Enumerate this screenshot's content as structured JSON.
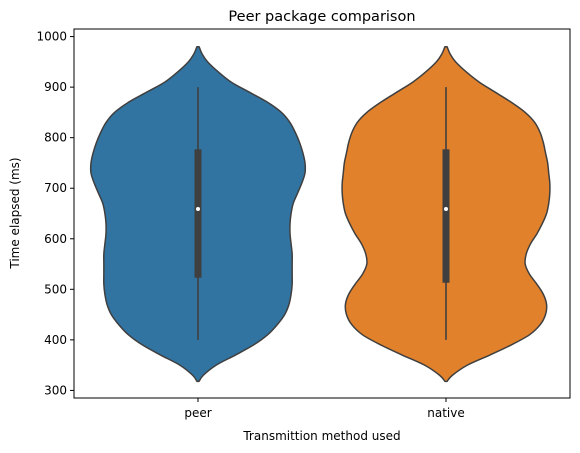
{
  "chart_data": {
    "type": "violin",
    "title": "Peer package comparison",
    "xlabel": "Transmittion method used",
    "ylabel": "Time elapsed (ms)",
    "ylim": [
      285,
      1015
    ],
    "yticks": [
      300,
      400,
      500,
      600,
      700,
      800,
      900,
      1000
    ],
    "categories": [
      "peer",
      "native"
    ],
    "grid": false,
    "series": [
      {
        "category": "peer",
        "color": "#3274a1",
        "min": 400,
        "q1": 523,
        "median": 659,
        "q3": 777,
        "max": 900,
        "density": [
          [
            318,
            0.01
          ],
          [
            330,
            0.05
          ],
          [
            350,
            0.17
          ],
          [
            370,
            0.35
          ],
          [
            390,
            0.52
          ],
          [
            410,
            0.65
          ],
          [
            430,
            0.74
          ],
          [
            450,
            0.81
          ],
          [
            470,
            0.85
          ],
          [
            490,
            0.87
          ],
          [
            510,
            0.88
          ],
          [
            530,
            0.88
          ],
          [
            550,
            0.88
          ],
          [
            570,
            0.88
          ],
          [
            590,
            0.87
          ],
          [
            610,
            0.86
          ],
          [
            630,
            0.86
          ],
          [
            650,
            0.87
          ],
          [
            670,
            0.89
          ],
          [
            690,
            0.93
          ],
          [
            710,
            0.97
          ],
          [
            730,
            1.0
          ],
          [
            750,
            1.0
          ],
          [
            770,
            0.98
          ],
          [
            790,
            0.95
          ],
          [
            810,
            0.91
          ],
          [
            830,
            0.86
          ],
          [
            850,
            0.78
          ],
          [
            870,
            0.65
          ],
          [
            890,
            0.48
          ],
          [
            910,
            0.31
          ],
          [
            930,
            0.19
          ],
          [
            950,
            0.09
          ],
          [
            965,
            0.04
          ],
          [
            980,
            0.01
          ]
        ]
      },
      {
        "category": "native",
        "color": "#e1812c",
        "min": 400,
        "q1": 513,
        "median": 659,
        "q3": 777,
        "max": 900,
        "density": [
          [
            318,
            0.01
          ],
          [
            330,
            0.06
          ],
          [
            350,
            0.2
          ],
          [
            370,
            0.41
          ],
          [
            390,
            0.61
          ],
          [
            410,
            0.78
          ],
          [
            430,
            0.88
          ],
          [
            450,
            0.93
          ],
          [
            470,
            0.94
          ],
          [
            490,
            0.91
          ],
          [
            510,
            0.85
          ],
          [
            530,
            0.78
          ],
          [
            550,
            0.74
          ],
          [
            570,
            0.75
          ],
          [
            590,
            0.79
          ],
          [
            610,
            0.85
          ],
          [
            630,
            0.9
          ],
          [
            650,
            0.94
          ],
          [
            670,
            0.96
          ],
          [
            690,
            0.97
          ],
          [
            710,
            0.97
          ],
          [
            730,
            0.96
          ],
          [
            750,
            0.95
          ],
          [
            770,
            0.93
          ],
          [
            790,
            0.91
          ],
          [
            810,
            0.88
          ],
          [
            830,
            0.83
          ],
          [
            850,
            0.74
          ],
          [
            870,
            0.61
          ],
          [
            890,
            0.46
          ],
          [
            910,
            0.31
          ],
          [
            930,
            0.19
          ],
          [
            950,
            0.09
          ],
          [
            965,
            0.04
          ],
          [
            980,
            0.01
          ]
        ]
      }
    ]
  }
}
